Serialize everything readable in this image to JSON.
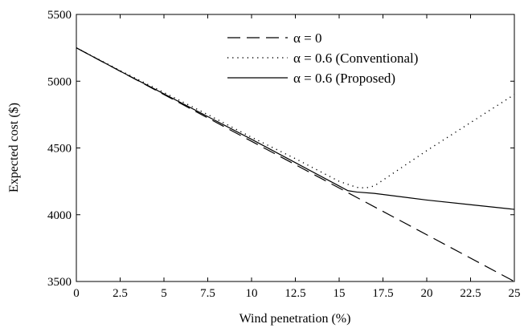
{
  "chart_data": {
    "type": "line",
    "xlabel": "Wind penetration (%)",
    "ylabel": "Expected cost ($)",
    "xlim": [
      0,
      25
    ],
    "ylim": [
      3500,
      5500
    ],
    "xticks": [
      0,
      2.5,
      5,
      7.5,
      10,
      12.5,
      15,
      17.5,
      20,
      22.5,
      25
    ],
    "xtick_labels": [
      "0",
      "2.5",
      "5",
      "7.5",
      "10",
      "12.5",
      "15",
      "17.5",
      "20",
      "22.5",
      "25"
    ],
    "yticks": [
      3500,
      4000,
      4500,
      5000,
      5500
    ],
    "ytick_labels": [
      "3500",
      "4000",
      "4500",
      "5000",
      "5500"
    ],
    "grid": false,
    "legend_position": "top-center",
    "series": [
      {
        "name": "α = 0",
        "style": "dashed",
        "color": "#000000",
        "x": [
          0,
          25
        ],
        "y": [
          5250,
          3500
        ]
      },
      {
        "name": "α = 0.6 (Conventional)",
        "style": "dotted",
        "color": "#000000",
        "x": [
          0,
          2.5,
          5,
          7.5,
          10,
          12.5,
          15,
          16,
          16.5,
          17,
          20,
          22.5,
          25
        ],
        "y": [
          5250,
          5080,
          4915,
          4750,
          4580,
          4420,
          4250,
          4205,
          4200,
          4215,
          4480,
          4690,
          4900
        ]
      },
      {
        "name": "α = 0.6 (Proposed)",
        "style": "solid",
        "color": "#000000",
        "x": [
          0,
          2.5,
          5,
          7.5,
          10,
          12.5,
          15,
          15.5,
          16,
          17,
          20,
          22.5,
          25
        ],
        "y": [
          5250,
          5075,
          4905,
          4735,
          4565,
          4390,
          4215,
          4180,
          4170,
          4160,
          4110,
          4075,
          4040
        ]
      }
    ]
  }
}
